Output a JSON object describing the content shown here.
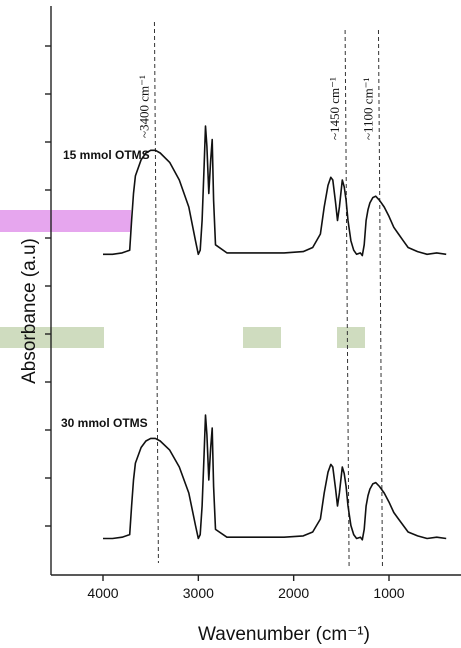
{
  "chart_data": {
    "type": "line",
    "xlabel": "Wavenumber (cm⁻¹)",
    "ylabel": "Absorbance (a.u)",
    "xlim": [
      4500,
      300
    ],
    "x_ticks": [
      4000,
      3000,
      2000,
      1000
    ],
    "x_reversed": true,
    "grid": false,
    "series": [
      {
        "name": "15 mmol OTMS",
        "points": [
          [
            4000,
            0.05
          ],
          [
            3900,
            0.05
          ],
          [
            3800,
            0.06
          ],
          [
            3720,
            0.08
          ],
          [
            3700,
            0.3
          ],
          [
            3680,
            0.5
          ],
          [
            3660,
            0.63
          ],
          [
            3600,
            0.75
          ],
          [
            3550,
            0.8
          ],
          [
            3500,
            0.82
          ],
          [
            3450,
            0.82
          ],
          [
            3400,
            0.8
          ],
          [
            3300,
            0.73
          ],
          [
            3200,
            0.6
          ],
          [
            3100,
            0.4
          ],
          [
            3030,
            0.15
          ],
          [
            3000,
            0.05
          ],
          [
            2980,
            0.08
          ],
          [
            2960,
            0.3
          ],
          [
            2940,
            0.7
          ],
          [
            2925,
            1.0
          ],
          [
            2910,
            0.85
          ],
          [
            2890,
            0.5
          ],
          [
            2870,
            0.75
          ],
          [
            2855,
            0.9
          ],
          [
            2840,
            0.45
          ],
          [
            2820,
            0.12
          ],
          [
            2700,
            0.06
          ],
          [
            2500,
            0.06
          ],
          [
            2300,
            0.06
          ],
          [
            2100,
            0.06
          ],
          [
            1900,
            0.07
          ],
          [
            1800,
            0.1
          ],
          [
            1720,
            0.2
          ],
          [
            1680,
            0.4
          ],
          [
            1640,
            0.56
          ],
          [
            1610,
            0.62
          ],
          [
            1590,
            0.6
          ],
          [
            1560,
            0.43
          ],
          [
            1540,
            0.3
          ],
          [
            1520,
            0.4
          ],
          [
            1490,
            0.6
          ],
          [
            1470,
            0.55
          ],
          [
            1450,
            0.45
          ],
          [
            1430,
            0.3
          ],
          [
            1400,
            0.15
          ],
          [
            1370,
            0.08
          ],
          [
            1340,
            0.05
          ],
          [
            1300,
            0.06
          ],
          [
            1280,
            0.04
          ],
          [
            1260,
            0.12
          ],
          [
            1240,
            0.3
          ],
          [
            1220,
            0.38
          ],
          [
            1200,
            0.43
          ],
          [
            1170,
            0.47
          ],
          [
            1140,
            0.48
          ],
          [
            1100,
            0.45
          ],
          [
            1050,
            0.4
          ],
          [
            1000,
            0.33
          ],
          [
            950,
            0.25
          ],
          [
            900,
            0.2
          ],
          [
            850,
            0.15
          ],
          [
            800,
            0.1
          ],
          [
            700,
            0.07
          ],
          [
            600,
            0.05
          ],
          [
            500,
            0.06
          ],
          [
            400,
            0.05
          ]
        ]
      },
      {
        "name": "30 mmol OTMS",
        "points": [
          [
            4000,
            0.05
          ],
          [
            3900,
            0.05
          ],
          [
            3800,
            0.06
          ],
          [
            3720,
            0.08
          ],
          [
            3700,
            0.3
          ],
          [
            3680,
            0.5
          ],
          [
            3660,
            0.63
          ],
          [
            3600,
            0.75
          ],
          [
            3550,
            0.8
          ],
          [
            3500,
            0.82
          ],
          [
            3450,
            0.82
          ],
          [
            3400,
            0.8
          ],
          [
            3300,
            0.73
          ],
          [
            3200,
            0.6
          ],
          [
            3100,
            0.4
          ],
          [
            3030,
            0.15
          ],
          [
            3000,
            0.05
          ],
          [
            2980,
            0.08
          ],
          [
            2960,
            0.3
          ],
          [
            2940,
            0.7
          ],
          [
            2925,
            1.0
          ],
          [
            2910,
            0.85
          ],
          [
            2890,
            0.5
          ],
          [
            2870,
            0.75
          ],
          [
            2855,
            0.9
          ],
          [
            2840,
            0.45
          ],
          [
            2820,
            0.12
          ],
          [
            2700,
            0.06
          ],
          [
            2500,
            0.06
          ],
          [
            2300,
            0.06
          ],
          [
            2100,
            0.06
          ],
          [
            1900,
            0.07
          ],
          [
            1800,
            0.1
          ],
          [
            1720,
            0.2
          ],
          [
            1680,
            0.4
          ],
          [
            1640,
            0.56
          ],
          [
            1610,
            0.62
          ],
          [
            1590,
            0.6
          ],
          [
            1560,
            0.43
          ],
          [
            1540,
            0.3
          ],
          [
            1520,
            0.4
          ],
          [
            1490,
            0.6
          ],
          [
            1470,
            0.55
          ],
          [
            1450,
            0.45
          ],
          [
            1430,
            0.3
          ],
          [
            1400,
            0.15
          ],
          [
            1370,
            0.08
          ],
          [
            1340,
            0.05
          ],
          [
            1300,
            0.06
          ],
          [
            1280,
            0.04
          ],
          [
            1260,
            0.12
          ],
          [
            1240,
            0.3
          ],
          [
            1220,
            0.38
          ],
          [
            1200,
            0.43
          ],
          [
            1170,
            0.47
          ],
          [
            1140,
            0.48
          ],
          [
            1100,
            0.45
          ],
          [
            1050,
            0.4
          ],
          [
            1000,
            0.33
          ],
          [
            950,
            0.25
          ],
          [
            900,
            0.2
          ],
          [
            850,
            0.15
          ],
          [
            800,
            0.1
          ],
          [
            700,
            0.07
          ],
          [
            600,
            0.05
          ],
          [
            500,
            0.06
          ],
          [
            400,
            0.05
          ]
        ]
      }
    ],
    "reference_lines": [
      {
        "x": 3450,
        "label": "~3400 cm⁻¹"
      },
      {
        "x": 1450,
        "label": "~1450 cm⁻¹"
      },
      {
        "x": 1100,
        "label": "~1100 cm⁻¹"
      }
    ]
  },
  "highlights": [
    {
      "color": "#e6a6ee"
    },
    {
      "color": "#cfdcbf"
    }
  ]
}
